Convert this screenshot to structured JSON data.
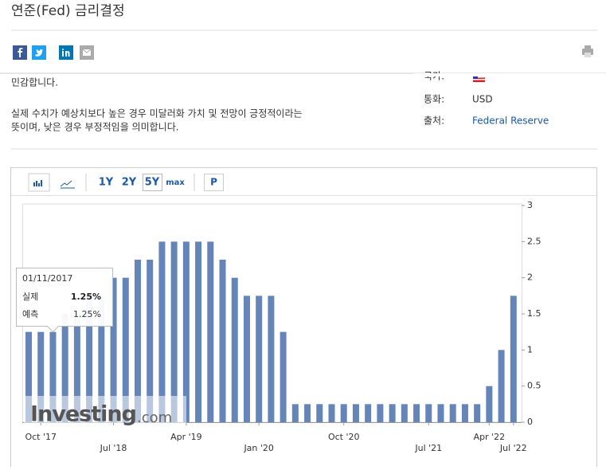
{
  "header": {
    "title": "연준(Fed) 금리결정"
  },
  "description": {
    "partial_line": "민감합니다.",
    "lines": [
      "실제 수치가 예상치보다 높은 경우 미달러화 가치 및 전망이 긍정적이라는",
      "뜻이며, 낮은 경우 부정적임을 의미합니다."
    ]
  },
  "info": {
    "country_label": "국가:",
    "currency_label": "통화:",
    "currency": "USD",
    "source_label": "출처:",
    "source": "Federal Reserve"
  },
  "toolbar": {
    "ranges": [
      "1Y",
      "2Y",
      "5Y",
      "max"
    ],
    "print": "P"
  },
  "tooltip": {
    "date": "01/11/2017",
    "actual_label": "실제",
    "actual": "1.25%",
    "forecast_label": "예측",
    "forecast": "1.25%"
  },
  "watermark": {
    "brand": "Investing",
    "suffix": ".com"
  },
  "chart_data": {
    "type": "bar",
    "color": "#6585b9",
    "categories": [
      null,
      "Oct '17",
      null,
      null,
      null,
      null,
      null,
      "Jul '18",
      null,
      null,
      null,
      null,
      null,
      "Apr '19",
      null,
      null,
      null,
      null,
      null,
      "Jan '20",
      null,
      null,
      null,
      null,
      null,
      null,
      "Oct '20",
      null,
      null,
      null,
      null,
      null,
      null,
      "Jul '21",
      null,
      null,
      null,
      null,
      "Apr '22",
      null,
      "Jul '22"
    ],
    "values": [
      1.25,
      1.25,
      1.25,
      1.5,
      1.5,
      1.75,
      1.75,
      2,
      2,
      2.25,
      2.25,
      2.5,
      2.5,
      2.5,
      2.5,
      2.5,
      2.25,
      2,
      1.75,
      1.75,
      1.75,
      1.25,
      0.25,
      0.25,
      0.25,
      0.25,
      0.25,
      0.25,
      0.25,
      0.25,
      0.25,
      0.25,
      0.25,
      0.25,
      0.25,
      0.25,
      0.25,
      0.25,
      0.5,
      1,
      1.75
    ],
    "ylim": [
      0,
      3
    ],
    "yticks": [
      0,
      0.5,
      1,
      1.5,
      2,
      2.5,
      3
    ],
    "grid": false
  }
}
